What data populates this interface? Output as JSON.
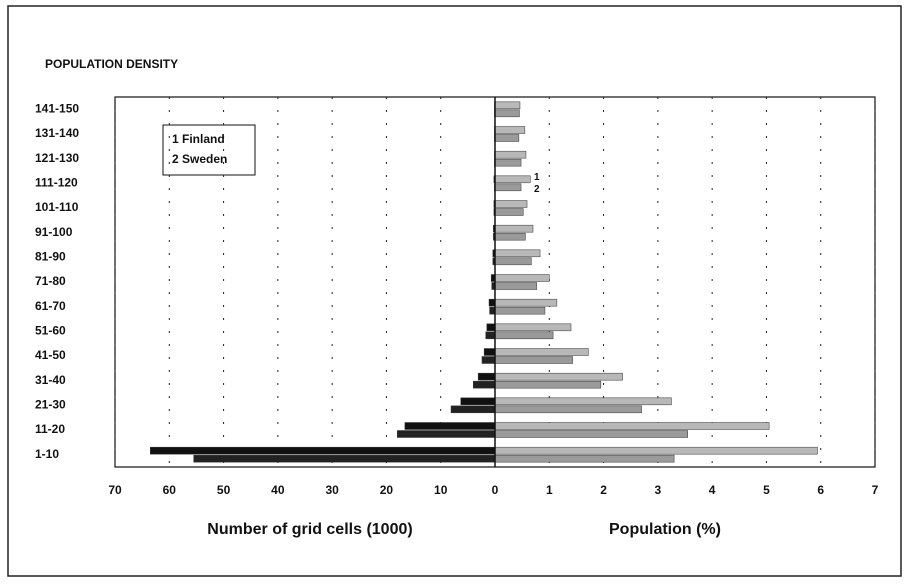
{
  "chart_data": [
    {
      "type": "hbar",
      "title": "POPULATION DENSITY",
      "categories": [
        "1-10",
        "11-20",
        "21-30",
        "31-40",
        "41-50",
        "51-60",
        "61-70",
        "71-80",
        "81-90",
        "91-100",
        "101-110",
        "111-120",
        "121-130",
        "131-140",
        "141-150"
      ],
      "xlabel": "Number of grid cells (1000)",
      "xlim": [
        70,
        0
      ],
      "xticks": [
        70,
        60,
        50,
        40,
        30,
        20,
        10,
        0
      ],
      "grid": true,
      "series": [
        {
          "name": "1 Finland",
          "color": "#111111",
          "values": [
            63.5,
            16.6,
            6.3,
            3.1,
            2.0,
            1.5,
            1.1,
            0.7,
            0.4,
            0.3,
            0.2,
            0.2,
            0.1,
            0.1,
            0.1
          ]
        },
        {
          "name": "2 Sweden",
          "color": "#222222",
          "values": [
            55.5,
            18.0,
            8.1,
            4.0,
            2.4,
            1.7,
            1.0,
            0.6,
            0.4,
            0.3,
            0.2,
            0.1,
            0.1,
            0.1,
            0.1
          ]
        }
      ]
    },
    {
      "type": "hbar",
      "xlabel": "Population (%)",
      "xlim": [
        0,
        7
      ],
      "xticks": [
        0,
        1,
        2,
        3,
        4,
        5,
        6,
        7
      ],
      "grid": true,
      "annotations": [
        "1",
        "2"
      ],
      "series": [
        {
          "color": "#b8b8b8",
          "values": [
            5.94,
            5.05,
            3.25,
            2.35,
            1.72,
            1.4,
            1.14,
            1.0,
            0.83,
            0.7,
            0.59,
            0.65,
            0.57,
            0.55,
            0.46
          ]
        },
        {
          "color": "#9a9a9a",
          "values": [
            3.3,
            3.55,
            2.7,
            1.95,
            1.43,
            1.07,
            0.92,
            0.77,
            0.67,
            0.56,
            0.52,
            0.48,
            0.48,
            0.44,
            0.45
          ]
        }
      ]
    }
  ]
}
